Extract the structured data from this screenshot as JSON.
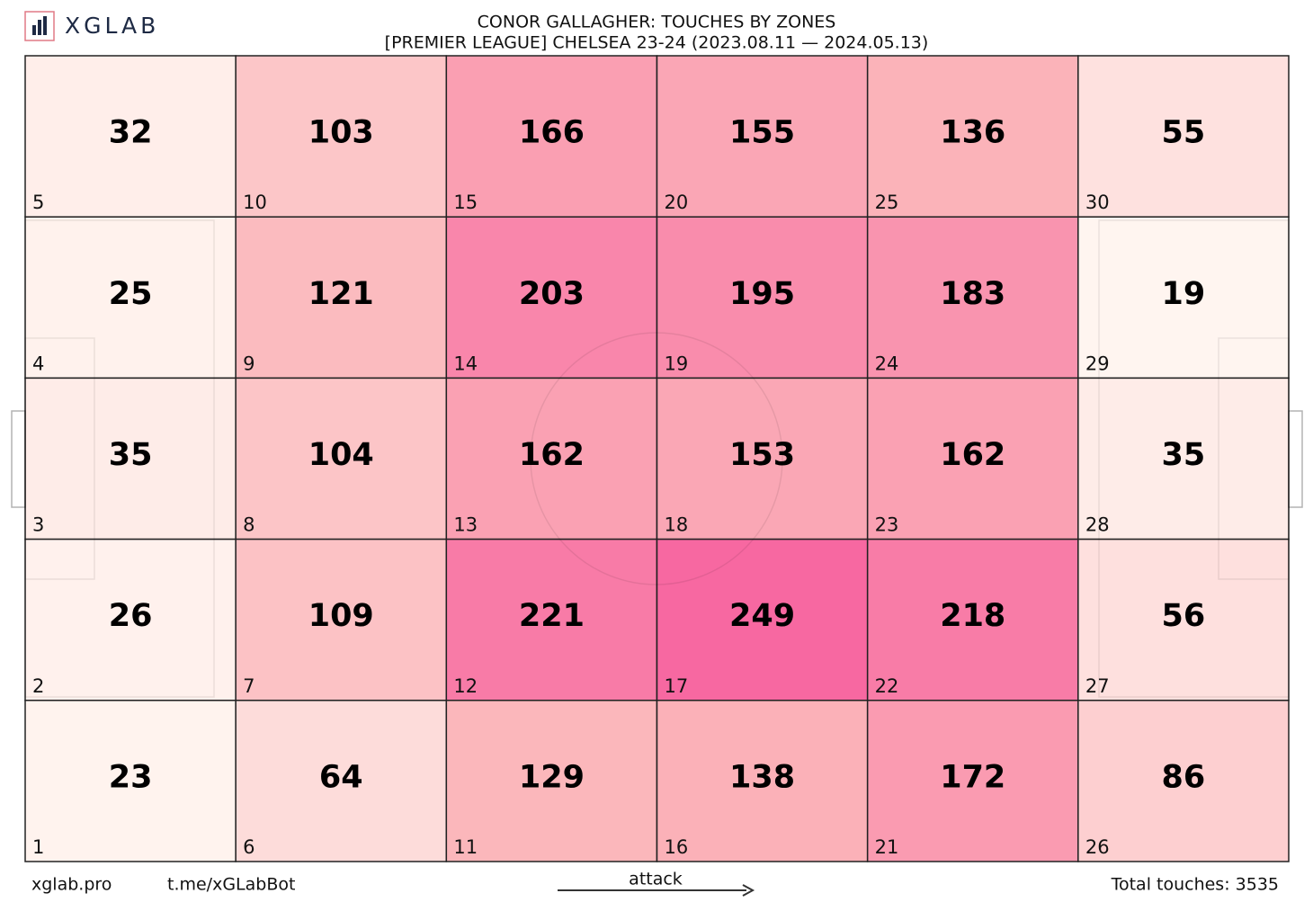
{
  "chart_data": {
    "type": "heatmap",
    "brand": "XGLAB",
    "title": "CONOR GALLAGHER: TOUCHES BY ZONES",
    "subtitle": "[PREMIER LEAGUE] CHELSEA 23-24 (2023.08.11 — 2024.05.13)",
    "columns": 6,
    "cmap": [
      "#fff5f0",
      "#fbb4b9",
      "#f768a1"
    ],
    "zones": [
      {
        "zone": 5,
        "value": 32
      },
      {
        "zone": 10,
        "value": 103
      },
      {
        "zone": 15,
        "value": 166
      },
      {
        "zone": 20,
        "value": 155
      },
      {
        "zone": 25,
        "value": 136
      },
      {
        "zone": 30,
        "value": 55
      },
      {
        "zone": 4,
        "value": 25
      },
      {
        "zone": 9,
        "value": 121
      },
      {
        "zone": 14,
        "value": 203
      },
      {
        "zone": 19,
        "value": 195
      },
      {
        "zone": 24,
        "value": 183
      },
      {
        "zone": 29,
        "value": 19
      },
      {
        "zone": 3,
        "value": 35
      },
      {
        "zone": 8,
        "value": 104
      },
      {
        "zone": 13,
        "value": 162
      },
      {
        "zone": 18,
        "value": 153
      },
      {
        "zone": 23,
        "value": 162
      },
      {
        "zone": 28,
        "value": 35
      },
      {
        "zone": 2,
        "value": 26
      },
      {
        "zone": 7,
        "value": 109
      },
      {
        "zone": 12,
        "value": 221
      },
      {
        "zone": 17,
        "value": 249
      },
      {
        "zone": 22,
        "value": 218
      },
      {
        "zone": 27,
        "value": 56
      },
      {
        "zone": 1,
        "value": 23
      },
      {
        "zone": 6,
        "value": 64
      },
      {
        "zone": 11,
        "value": 129
      },
      {
        "zone": 16,
        "value": 138
      },
      {
        "zone": 21,
        "value": 172
      },
      {
        "zone": 26,
        "value": 86
      }
    ],
    "footer": {
      "site": "xglab.pro",
      "bot": "t.me/xGLabBot",
      "direction": "attack",
      "total": "Total touches: 3535"
    }
  }
}
